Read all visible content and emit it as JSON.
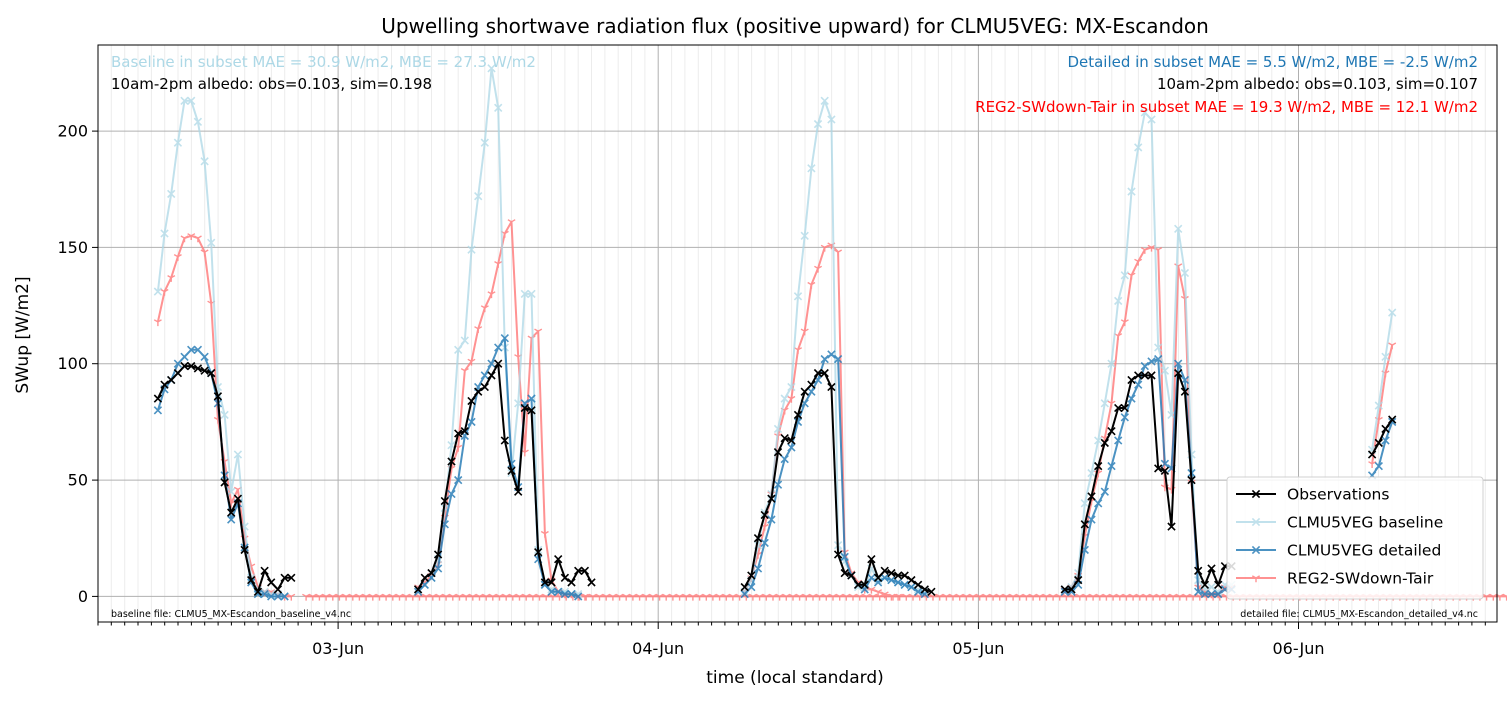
{
  "chart_data": {
    "type": "line",
    "title": "Upwelling shortwave radiation flux (positive upward) for CLMU5VEG: MX-Escandon",
    "xlabel": "time (local standard)",
    "ylabel": "SWup [W/m2]",
    "xlim": [
      -0.75,
      3.62
    ],
    "ylim": [
      -11,
      237
    ],
    "x_ticks": [
      {
        "x": 0,
        "label": "03-Jun"
      },
      {
        "x": 1,
        "label": "04-Jun"
      },
      {
        "x": 2,
        "label": "05-Jun"
      },
      {
        "x": 3,
        "label": "06-Jun"
      }
    ],
    "y_ticks": [
      0,
      50,
      100,
      150,
      200
    ],
    "grid": true,
    "legend_position": "lower-right",
    "annotations": {
      "baseline_stats": "Baseline in subset MAE = 30.9 W/m2, MBE = 27.3 W/m2",
      "baseline_albedo": "10am-2pm albedo: obs=0.103, sim=0.198",
      "detailed_stats": "Detailed in subset MAE = 5.5 W/m2, MBE = -2.5 W/m2",
      "detailed_albedo": "10am-2pm albedo: obs=0.103, sim=0.107",
      "reg2_stats": "REG2-SWdown-Tair in subset MAE = 19.3 W/m2, MBE = 12.1 W/m2",
      "baseline_file": "baseline file: CLMU5_MX-Escandon_baseline_v4.nc",
      "detailed_file": "detailed file: CLMU5_MX-Escandon_detailed_v4.nc"
    },
    "annotation_colors": {
      "baseline": "#add8e6",
      "detailed": "#1f77b4",
      "reg2": "#ff0000",
      "albedo": "#000000"
    },
    "series": [
      {
        "name": "Observations",
        "color": "#000000",
        "marker": "x",
        "alpha": 1.0,
        "segments": [
          {
            "x0": -0.563,
            "values": [
              85,
              91,
              93,
              96,
              99,
              99,
              98,
              97,
              96,
              86,
              49,
              36,
              42,
              20,
              7,
              2,
              11,
              6,
              3,
              8,
              8
            ]
          },
          {
            "x0": 0.25,
            "values": [
              3,
              8,
              10,
              18,
              41,
              58,
              70,
              71,
              84,
              88,
              90,
              95,
              100,
              67,
              54,
              45,
              81,
              80,
              19,
              6,
              6,
              16,
              8,
              6,
              11,
              11,
              6
            ]
          },
          {
            "x0": 1.27,
            "values": [
              4,
              9,
              25,
              35,
              42,
              62,
              68,
              67,
              78,
              88,
              91,
              96,
              96,
              90,
              18,
              10,
              9,
              5,
              5,
              16,
              8,
              11,
              10,
              9,
              9,
              7,
              5,
              3,
              2
            ]
          },
          {
            "x0": 2.27,
            "values": [
              3,
              3,
              7,
              31,
              43,
              56,
              66,
              71,
              81,
              81,
              93,
              95,
              95,
              95,
              55,
              54,
              30,
              96,
              88,
              50,
              11,
              5,
              12,
              5,
              13,
              13
            ]
          },
          {
            "x0": 3.23,
            "values": [
              61,
              66,
              72,
              76
            ]
          }
        ]
      },
      {
        "name": "CLMU5VEG baseline",
        "color": "#add8e6",
        "marker": "x",
        "alpha": 0.75,
        "segments": [
          {
            "x0": -0.563,
            "values": [
              131,
              156,
              173,
              195,
              213,
              213,
              204,
              187,
              152,
              90,
              78,
              45,
              61,
              30,
              8,
              3,
              2,
              1,
              1,
              0
            ]
          },
          {
            "x0": 0.25,
            "values": [
              3,
              5,
              8,
              16,
              38,
              65,
              106,
              110,
              149,
              172,
              195,
              227,
              210,
              107,
              53,
              83,
              130,
              130,
              20,
              5,
              3,
              2,
              2,
              1,
              1
            ]
          },
          {
            "x0": 1.27,
            "values": [
              2,
              7,
              22,
              36,
              44,
              72,
              85,
              90,
              129,
              155,
              184,
              203,
              213,
              205,
              22,
              15,
              9,
              4,
              4,
              12,
              7,
              8,
              7,
              6,
              5,
              4,
              3,
              2
            ]
          },
          {
            "x0": 2.27,
            "values": [
              3,
              4,
              10,
              40,
              53,
              67,
              83,
              100,
              127,
              138,
              174,
              193,
              208,
              205,
              107,
              97,
              78,
              158,
              139,
              61,
              7,
              3,
              4,
              2,
              5,
              5
            ]
          },
          {
            "x0": 3.23,
            "values": [
              63,
              82,
              103,
              122
            ]
          }
        ]
      },
      {
        "name": "CLMU5VEG detailed",
        "color": "#1f77b4",
        "marker": "x",
        "alpha": 0.8,
        "segments": [
          {
            "x0": -0.563,
            "values": [
              80,
              89,
              93,
              100,
              103,
              106,
              106,
              103,
              96,
              83,
              52,
              33,
              40,
              21,
              6,
              1,
              1,
              0,
              0,
              0
            ]
          },
          {
            "x0": 0.25,
            "values": [
              2,
              5,
              8,
              12,
              31,
              44,
              50,
              69,
              75,
              90,
              95,
              100,
              107,
              111,
              57,
              47,
              83,
              85,
              16,
              5,
              2,
              2,
              1,
              1,
              0
            ]
          },
          {
            "x0": 1.27,
            "values": [
              1,
              4,
              12,
              23,
              33,
              48,
              59,
              64,
              75,
              83,
              88,
              93,
              102,
              104,
              102,
              17,
              9,
              5,
              3,
              8,
              6,
              8,
              7,
              6,
              5,
              4,
              2,
              1
            ]
          },
          {
            "x0": 2.27,
            "values": [
              2,
              2,
              5,
              20,
              33,
              40,
              45,
              56,
              67,
              77,
              85,
              91,
              99,
              101,
              102,
              57,
              55,
              100,
              93,
              53,
              2,
              1,
              1,
              1,
              3,
              3
            ]
          },
          {
            "x0": 3.23,
            "values": [
              52,
              56,
              67,
              75
            ]
          }
        ]
      },
      {
        "name": "REG2-SWdown-Tair",
        "color": "#ff7f7f",
        "marker": "1",
        "alpha": 0.85,
        "segments": [
          {
            "x0": -0.563,
            "values": [
              118,
              131,
              137,
              146,
              154,
              155,
              154,
              148,
              126,
              76,
              58,
              40,
              46,
              25,
              13,
              4,
              2,
              2,
              1,
              0,
              0
            ]
          },
          {
            "x0": -0.1,
            "values": [
              0,
              0,
              0,
              0,
              0,
              0,
              0,
              0,
              0,
              0,
              0,
              0,
              0,
              0,
              0,
              0,
              0,
              0,
              0,
              0,
              0,
              0,
              0,
              0,
              0,
              0,
              0,
              0,
              0,
              0,
              0,
              0,
              0,
              0,
              0,
              0,
              0,
              0,
              0,
              0,
              0,
              0,
              0,
              0,
              0,
              0,
              0,
              0,
              0,
              0,
              0,
              0,
              0,
              0,
              0,
              0,
              0,
              0,
              0,
              0,
              0,
              0,
              0,
              0,
              0,
              0,
              0,
              0,
              0,
              0,
              0,
              0,
              0,
              0,
              0,
              0,
              0,
              0,
              0,
              0,
              0,
              0,
              0,
              0,
              0,
              0,
              0,
              0,
              0,
              0,
              0,
              0,
              0,
              0,
              0,
              0,
              0,
              0,
              0,
              0,
              0,
              0,
              0,
              0,
              0,
              0,
              0,
              0,
              0,
              0,
              0,
              0,
              0,
              0,
              0,
              0,
              0,
              0,
              0,
              0,
              0,
              0,
              0,
              0,
              0,
              0,
              0,
              0,
              0,
              0,
              0,
              0,
              0,
              0,
              0,
              0,
              0,
              0,
              0,
              0,
              0,
              0,
              0,
              0,
              0,
              0,
              0,
              0,
              0,
              0,
              0,
              0,
              0,
              0,
              0,
              0,
              0,
              0,
              0,
              0,
              0,
              0,
              0,
              0,
              0,
              0,
              0,
              0,
              0,
              0,
              0,
              0,
              0,
              0,
              0,
              0,
              0,
              0,
              0,
              0,
              0,
              0,
              0,
              0,
              0,
              0,
              0,
              0,
              0,
              0,
              0,
              0,
              0,
              0,
              0,
              0,
              0,
              0,
              0,
              0,
              0,
              0,
              0,
              0,
              0,
              0,
              0,
              0,
              0,
              0,
              0,
              0,
              0,
              0,
              0,
              0,
              0,
              0,
              0,
              0,
              0,
              0,
              0,
              0,
              0,
              0
            ]
          },
          {
            "x0": 0.25,
            "values": [
              4,
              6,
              9,
              14,
              34,
              55,
              64,
              97,
              101,
              115,
              124,
              130,
              143,
              156,
              161,
              103,
              62,
              111,
              114,
              27,
              7,
              2,
              1,
              1,
              0,
              0
            ]
          },
          {
            "x0": 1.27,
            "values": [
              2,
              8,
              18,
              30,
              44,
              69,
              80,
              85,
              106,
              114,
              134,
              141,
              150,
              151,
              148,
              19,
              10,
              6,
              3,
              3,
              2,
              1,
              0,
              0
            ]
          },
          {
            "x0": 2.27,
            "values": [
              3,
              4,
              9,
              26,
              41,
              53,
              68,
              83,
              112,
              118,
              138,
              144,
              149,
              150,
              149,
              47,
              46,
              142,
              128,
              49,
              4,
              2,
              1,
              1,
              4,
              4
            ]
          },
          {
            "x0": 3.23,
            "values": [
              57,
              76,
              96,
              108
            ]
          }
        ]
      }
    ]
  }
}
